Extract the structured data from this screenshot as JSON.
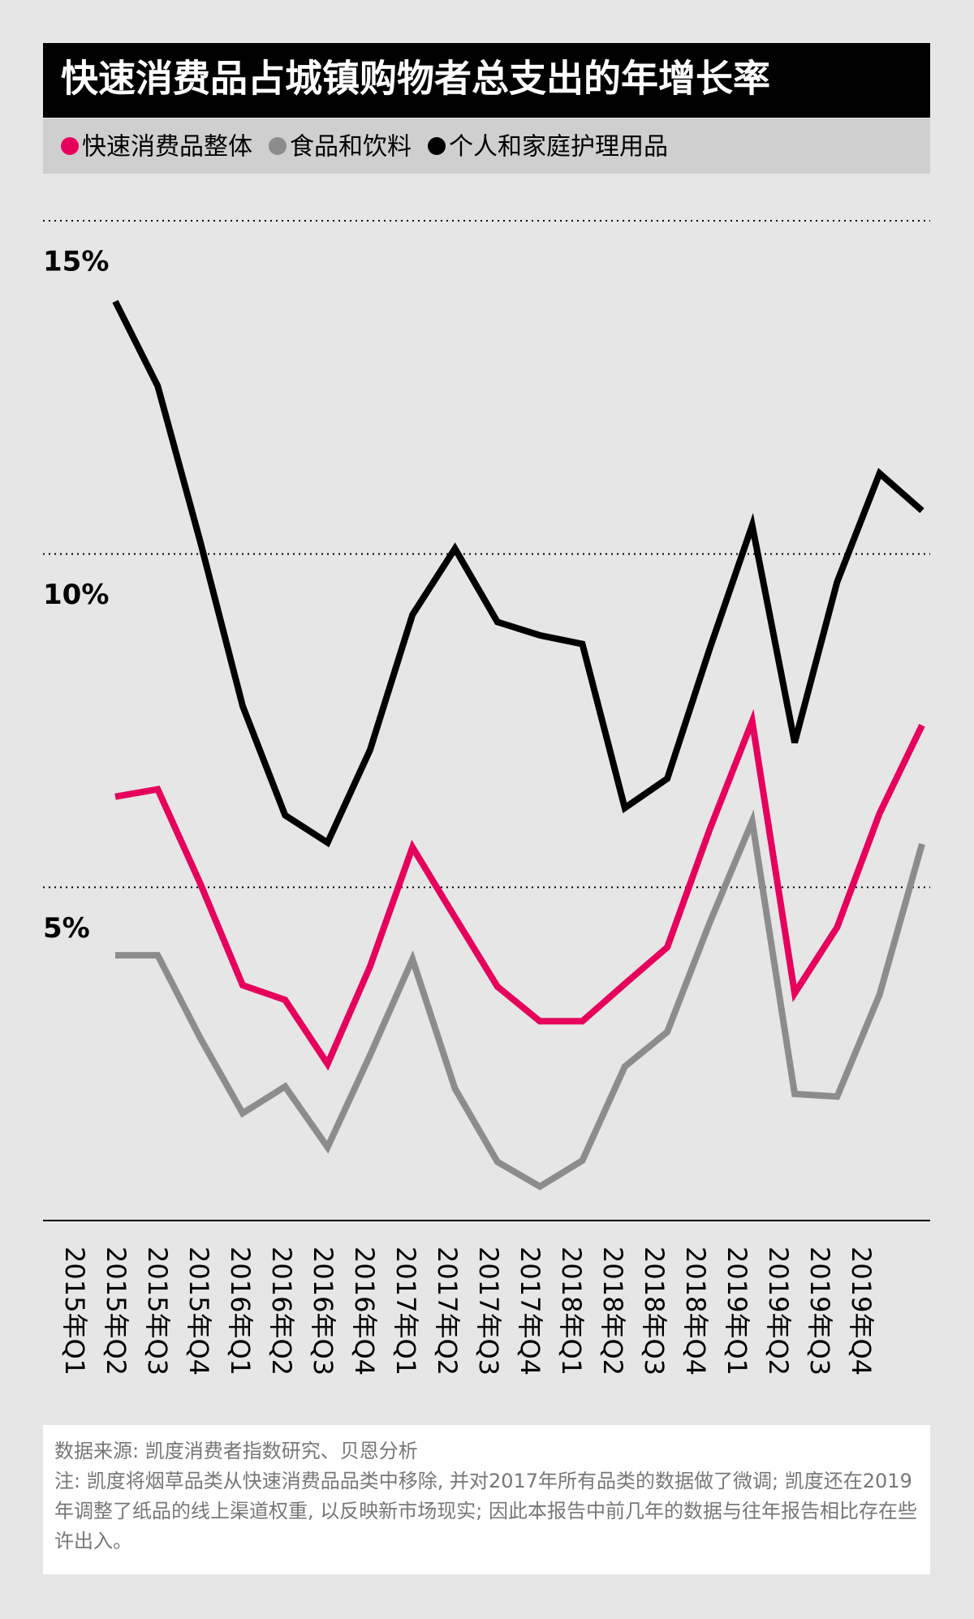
{
  "chart_data": {
    "type": "line",
    "title": "快速消费品占城镇购物者总支出的年增长率",
    "categories": [
      "2015年Q1",
      "2015年Q2",
      "2015年Q3",
      "2015年Q4",
      "2016年Q1",
      "2016年Q2",
      "2016年Q3",
      "2016年Q4",
      "2017年Q1",
      "2017年Q2",
      "2017年Q3",
      "2017年Q4",
      "2018年Q1",
      "2018年Q2",
      "2018年Q3",
      "2018年Q4",
      "2019年Q1",
      "2019年Q2",
      "2019年Q3",
      "2019年Q4"
    ],
    "series": [
      {
        "name": "快速消费品整体",
        "color": "#e6005c",
        "values": [
          6.36,
          6.47,
          5.06,
          3.53,
          3.31,
          2.35,
          3.81,
          5.6,
          4.55,
          3.51,
          2.99,
          2.99,
          3.55,
          4.1,
          5.87,
          7.49,
          3.41,
          4.4,
          6.11,
          7.43
        ]
      },
      {
        "name": "食品和饮料",
        "color": "#8c8c8c",
        "values": [
          3.98,
          3.98,
          2.74,
          1.61,
          2.01,
          1.1,
          2.48,
          3.92,
          1.98,
          0.88,
          0.51,
          0.9,
          2.31,
          2.83,
          4.47,
          5.99,
          1.9,
          1.86,
          3.39,
          5.65
        ]
      },
      {
        "name": "个人和家庭护理用品",
        "color": "#000000",
        "values": [
          13.79,
          12.52,
          10.19,
          7.72,
          6.08,
          5.67,
          7.06,
          9.09,
          10.08,
          8.98,
          8.78,
          8.65,
          6.19,
          6.63,
          8.58,
          10.43,
          7.17,
          9.58,
          11.21,
          10.65
        ]
      }
    ],
    "ylim": [
      0,
      15
    ],
    "yticks": [
      {
        "value": 5,
        "label": "5%"
      },
      {
        "value": 10,
        "label": "10%"
      },
      {
        "value": 15,
        "label": "15%"
      }
    ],
    "grid": true,
    "source": "数据来源: 凯度消费者指数研究、贝恩分析",
    "note": "注: 凯度将烟草品类从快速消费品品类中移除, 并对2017年所有品类的数据做了微调; 凯度还在2019年调整了纸品的线上渠道权重, 以反映新市场现实; 因此本报告中前几年的数据与往年报告相比存在些许出入。"
  }
}
